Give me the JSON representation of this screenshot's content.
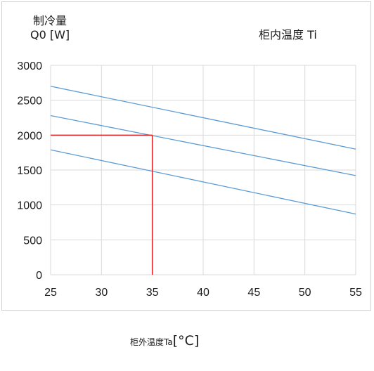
{
  "chart_data": {
    "type": "line",
    "ylabel": [
      "制冷量",
      "Q0 [W]"
    ],
    "xlabel": "柜外温度Ta",
    "xlabel_unit": "[°C]",
    "panel_title": "柜内温度  Ti",
    "xlim": [
      25,
      55
    ],
    "ylim": [
      0,
      3000
    ],
    "xticks": [
      "25",
      "30",
      "35",
      "40",
      "45",
      "50",
      "55"
    ],
    "yticks": [
      "0",
      "500",
      "1000",
      "1500",
      "2000",
      "2500",
      "3000"
    ],
    "grid": true,
    "series": [
      {
        "x": [
          25,
          55
        ],
        "values": [
          2700,
          1800
        ],
        "color": "#5b9bd5"
      },
      {
        "x": [
          25,
          55
        ],
        "values": [
          2280,
          1420
        ],
        "color": "#5b9bd5"
      },
      {
        "x": [
          25,
          55
        ],
        "values": [
          1790,
          870
        ],
        "color": "#5b9bd5"
      }
    ],
    "reference": {
      "x": 35,
      "y": 2000,
      "color": "#e02020"
    }
  }
}
